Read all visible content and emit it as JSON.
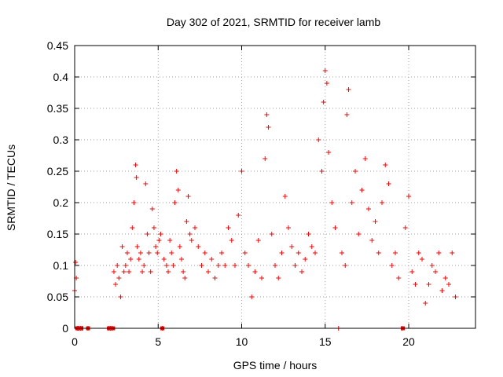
{
  "chart_data": {
    "type": "scatter",
    "title": "Day 302 of 2021, SRMTID for receiver lamb",
    "xlabel": "GPS time / hours",
    "ylabel": "SRMTID / TECUs",
    "xlim": [
      0,
      24
    ],
    "ylim": [
      0,
      0.45
    ],
    "x_ticks": [
      0,
      5,
      10,
      15,
      20
    ],
    "x_tick_labels": [
      "0",
      "5",
      "10",
      "15",
      "20"
    ],
    "y_ticks": [
      0,
      0.05,
      0.1,
      0.15,
      0.2,
      0.25,
      0.3,
      0.35,
      0.4,
      0.45
    ],
    "y_tick_labels": [
      "0",
      "0.05",
      "0.1",
      "0.15",
      "0.2",
      "0.25",
      "0.3",
      "0.35",
      "0.4",
      "0.45"
    ],
    "grid": true,
    "marker": "plus",
    "colors": {
      "series": "#ff0000",
      "frame": "#000000",
      "grid": "#a0a0a0"
    },
    "series": [
      {
        "name": "SRMTID",
        "x": [
          0.0,
          0.05,
          0.1,
          0.15,
          0.2,
          0.25,
          0.35,
          0.45,
          0.8,
          2.05,
          2.15,
          2.25,
          2.35,
          2.45,
          2.55,
          2.65,
          2.75,
          2.85,
          2.95,
          3.05,
          3.15,
          3.25,
          3.35,
          3.45,
          3.55,
          3.65,
          3.7,
          3.75,
          3.85,
          3.95,
          4.05,
          4.15,
          4.25,
          4.35,
          4.45,
          4.55,
          4.65,
          4.75,
          4.85,
          4.95,
          5.05,
          5.15,
          5.25,
          5.35,
          5.5,
          5.6,
          5.7,
          5.8,
          5.9,
          6.0,
          6.1,
          6.2,
          6.3,
          6.4,
          6.5,
          6.6,
          6.7,
          6.8,
          6.9,
          7.0,
          7.2,
          7.4,
          7.6,
          7.8,
          8.0,
          8.2,
          8.4,
          8.6,
          8.8,
          9.0,
          9.2,
          9.4,
          9.6,
          9.8,
          10.0,
          10.2,
          10.4,
          10.6,
          10.8,
          11.0,
          11.2,
          11.4,
          11.5,
          11.6,
          11.8,
          12.0,
          12.2,
          12.4,
          12.6,
          12.8,
          13.0,
          13.2,
          13.4,
          13.6,
          13.8,
          14.0,
          14.2,
          14.4,
          14.6,
          14.8,
          14.9,
          15.0,
          15.1,
          15.2,
          15.4,
          15.6,
          15.8,
          16.0,
          16.2,
          16.3,
          16.4,
          16.6,
          16.8,
          17.0,
          17.2,
          17.4,
          17.6,
          17.8,
          18.0,
          18.2,
          18.4,
          18.6,
          18.8,
          19.0,
          19.2,
          19.4,
          19.6,
          19.8,
          20.0,
          20.2,
          20.4,
          20.6,
          20.8,
          21.0,
          21.2,
          21.4,
          21.6,
          21.8,
          22.0,
          22.2,
          22.4,
          22.6,
          22.8
        ],
        "y": [
          0.06,
          0.105,
          0.08,
          0.0,
          0.0,
          0.0,
          0.0,
          0.0,
          0.0,
          0.0,
          0.0,
          0.0,
          0.09,
          0.07,
          0.1,
          0.08,
          0.05,
          0.13,
          0.09,
          0.1,
          0.12,
          0.09,
          0.11,
          0.16,
          0.2,
          0.26,
          0.24,
          0.13,
          0.11,
          0.12,
          0.09,
          0.1,
          0.23,
          0.15,
          0.12,
          0.09,
          0.19,
          0.16,
          0.13,
          0.12,
          0.14,
          0.15,
          0.0,
          0.11,
          0.1,
          0.09,
          0.14,
          0.12,
          0.1,
          0.2,
          0.25,
          0.22,
          0.13,
          0.11,
          0.09,
          0.08,
          0.17,
          0.21,
          0.15,
          0.14,
          0.16,
          0.13,
          0.1,
          0.12,
          0.09,
          0.11,
          0.08,
          0.1,
          0.12,
          0.1,
          0.16,
          0.14,
          0.1,
          0.18,
          0.25,
          0.12,
          0.1,
          0.05,
          0.09,
          0.14,
          0.08,
          0.27,
          0.34,
          0.32,
          0.15,
          0.1,
          0.08,
          0.12,
          0.21,
          0.16,
          0.13,
          0.1,
          0.12,
          0.09,
          0.11,
          0.15,
          0.13,
          0.12,
          0.3,
          0.25,
          0.36,
          0.41,
          0.39,
          0.28,
          0.2,
          0.16,
          0.0,
          0.12,
          0.1,
          0.34,
          0.38,
          0.2,
          0.25,
          0.15,
          0.22,
          0.27,
          0.19,
          0.14,
          0.17,
          0.12,
          0.2,
          0.26,
          0.23,
          0.1,
          0.12,
          0.08,
          0.0,
          0.16,
          0.21,
          0.09,
          0.07,
          0.12,
          0.11,
          0.04,
          0.07,
          0.1,
          0.09,
          0.12,
          0.06,
          0.08,
          0.07,
          0.12,
          0.05
        ]
      }
    ],
    "zero_markers_x": [
      0.15,
      0.2,
      0.25,
      0.35,
      0.4,
      0.8,
      2.05,
      2.1,
      2.15,
      2.2,
      2.25,
      2.3,
      5.25,
      19.65
    ]
  }
}
